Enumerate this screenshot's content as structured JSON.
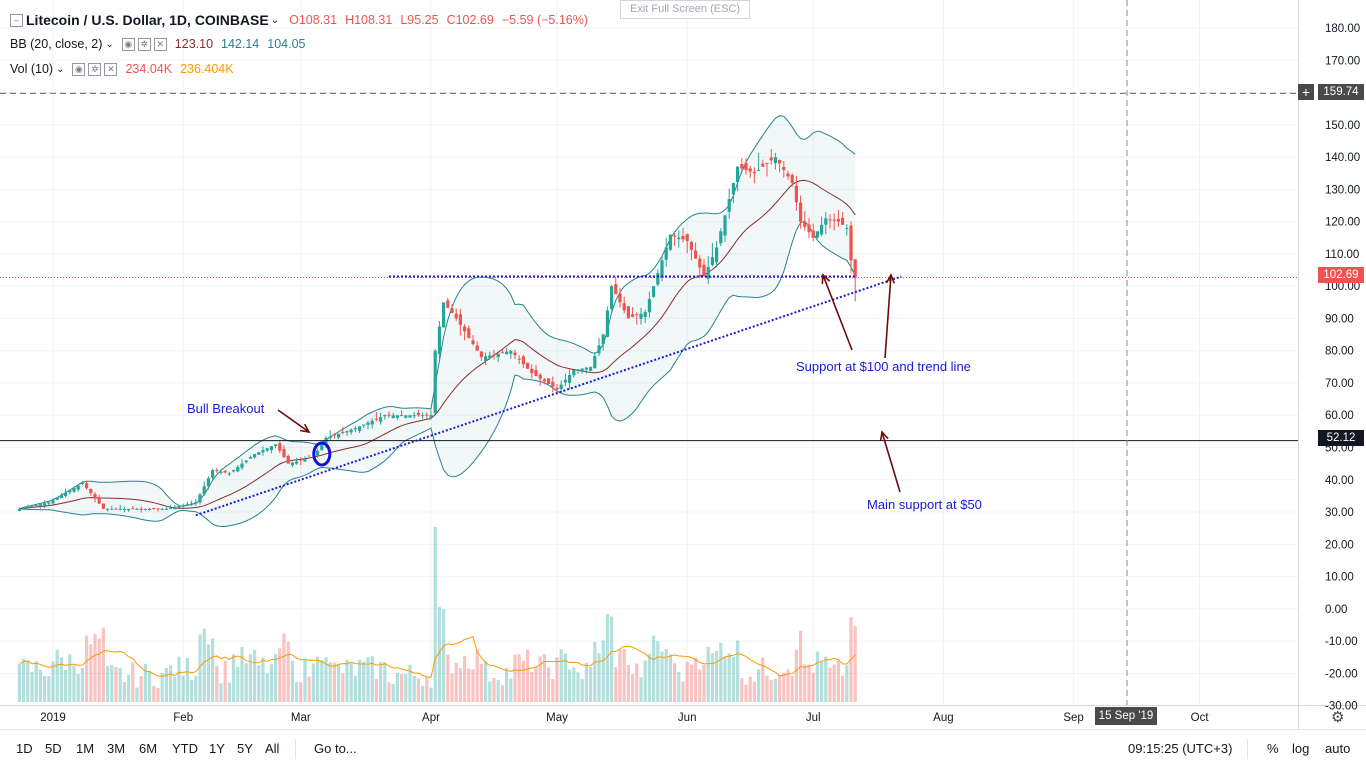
{
  "header": {
    "title": "Litecoin / U.S. Dollar, 1D, COINBASE",
    "ohlc": {
      "o": "O108.31",
      "h": "H108.31",
      "l": "L95.25",
      "c": "C102.69",
      "chg": "−5.59 (−5.16%)"
    },
    "exit_fullscreen": "Exit Full Screen (ESC)"
  },
  "indicators": {
    "bb": {
      "label": "BB (20, close, 2)",
      "v1": "123.10",
      "v2": "142.14",
      "v3": "104.05"
    },
    "vol": {
      "label": "Vol (10)",
      "v1": "234.04K",
      "v2": "236.404K"
    }
  },
  "price_labels": {
    "crosshair": "159.74",
    "last": "102.69",
    "support": "52.12"
  },
  "time_label": "15 Sep '19",
  "annotations": {
    "bull": "Bull Breakout",
    "support100": "Support at $100 and trend line",
    "main_support": "Main support at $50"
  },
  "bottom": {
    "ranges": [
      "1D",
      "5D",
      "1M",
      "3M",
      "6M",
      "YTD",
      "1Y",
      "5Y",
      "All"
    ],
    "goto": "Go to...",
    "clock": "09:15:25 (UTC+3)",
    "pct": "%",
    "log": "log",
    "auto": "auto"
  },
  "colors": {
    "up": "#26a69a",
    "down": "#ef5350",
    "bands": "#26828e",
    "basis": "#8b2b2b",
    "trend": "#1a1ad6",
    "arrow": "#6b0b0b"
  },
  "chart_data": {
    "type": "candlestick",
    "symbol": "LTCUSD",
    "y_ticks": [
      180,
      170,
      160,
      150,
      140,
      130,
      120,
      110,
      100,
      90,
      80,
      70,
      60,
      50,
      40,
      30,
      20,
      10,
      0,
      -10,
      -20,
      -30
    ],
    "x_labels": [
      {
        "label": "2019",
        "date": "2019-01-01"
      },
      {
        "label": "Feb",
        "date": "2019-02-01"
      },
      {
        "label": "Mar",
        "date": "2019-03-01"
      },
      {
        "label": "Apr",
        "date": "2019-04-01"
      },
      {
        "label": "May",
        "date": "2019-05-01"
      },
      {
        "label": "Jun",
        "date": "2019-06-01"
      },
      {
        "label": "Jul",
        "date": "2019-07-01"
      },
      {
        "label": "Aug",
        "date": "2019-08-01"
      },
      {
        "label": "Sep",
        "date": "2019-09-01"
      },
      {
        "label": "Oct",
        "date": "2019-10-01"
      }
    ],
    "closes": [
      {
        "date": "2018-12-24",
        "close": 31
      },
      {
        "date": "2018-12-31",
        "close": 33
      },
      {
        "date": "2019-01-08",
        "close": 39
      },
      {
        "date": "2019-01-13",
        "close": 31
      },
      {
        "date": "2019-01-20",
        "close": 31
      },
      {
        "date": "2019-01-28",
        "close": 31
      },
      {
        "date": "2019-02-04",
        "close": 33
      },
      {
        "date": "2019-02-08",
        "close": 43
      },
      {
        "date": "2019-02-12",
        "close": 42
      },
      {
        "date": "2019-02-18",
        "close": 48
      },
      {
        "date": "2019-02-23",
        "close": 51
      },
      {
        "date": "2019-02-26",
        "close": 45
      },
      {
        "date": "2019-03-04",
        "close": 47
      },
      {
        "date": "2019-03-07",
        "close": 53
      },
      {
        "date": "2019-03-14",
        "close": 56
      },
      {
        "date": "2019-03-21",
        "close": 60
      },
      {
        "date": "2019-03-28",
        "close": 60
      },
      {
        "date": "2019-04-01",
        "close": 60
      },
      {
        "date": "2019-04-02",
        "close": 80
      },
      {
        "date": "2019-04-04",
        "close": 95
      },
      {
        "date": "2019-04-07",
        "close": 90
      },
      {
        "date": "2019-04-13",
        "close": 78
      },
      {
        "date": "2019-04-20",
        "close": 80
      },
      {
        "date": "2019-04-25",
        "close": 73
      },
      {
        "date": "2019-05-01",
        "close": 68
      },
      {
        "date": "2019-05-05",
        "close": 74
      },
      {
        "date": "2019-05-09",
        "close": 75
      },
      {
        "date": "2019-05-12",
        "close": 85
      },
      {
        "date": "2019-05-14",
        "close": 100
      },
      {
        "date": "2019-05-18",
        "close": 90
      },
      {
        "date": "2019-05-22",
        "close": 92
      },
      {
        "date": "2019-05-25",
        "close": 104
      },
      {
        "date": "2019-05-28",
        "close": 116
      },
      {
        "date": "2019-06-01",
        "close": 114
      },
      {
        "date": "2019-06-05",
        "close": 103
      },
      {
        "date": "2019-06-08",
        "close": 112
      },
      {
        "date": "2019-06-11",
        "close": 127
      },
      {
        "date": "2019-06-13",
        "close": 137
      },
      {
        "date": "2019-06-17",
        "close": 135
      },
      {
        "date": "2019-06-22",
        "close": 140
      },
      {
        "date": "2019-06-26",
        "close": 132
      },
      {
        "date": "2019-06-28",
        "close": 120
      },
      {
        "date": "2019-07-01",
        "close": 115
      },
      {
        "date": "2019-07-04",
        "close": 121
      },
      {
        "date": "2019-07-07",
        "close": 120
      },
      {
        "date": "2019-07-09",
        "close": 118
      },
      {
        "date": "2019-07-10",
        "close": 108
      },
      {
        "date": "2019-07-11",
        "close": 102.69
      }
    ],
    "horizontal_levels": [
      159.74,
      102.69,
      52.12
    ],
    "resistance_dotted": 103,
    "trend_line": {
      "from": {
        "date": "2019-02-04",
        "price": 29
      },
      "to": {
        "date": "2019-07-22",
        "price": 103
      }
    },
    "ylabel": "",
    "xlabel": ""
  }
}
